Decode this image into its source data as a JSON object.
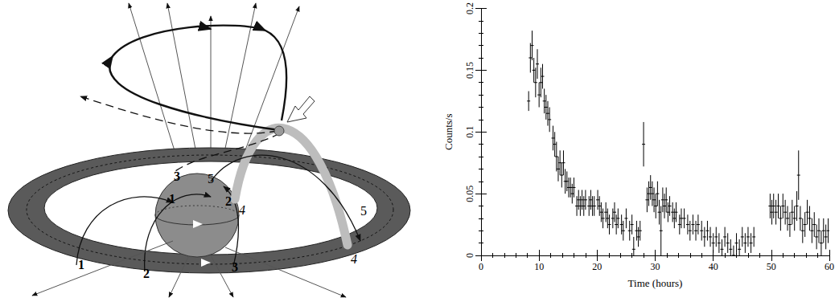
{
  "diagram": {
    "labels": [
      "1",
      "2",
      "3",
      "5",
      "4",
      "1",
      "2",
      "3",
      "5",
      "4"
    ]
  },
  "chart_data": {
    "type": "scatter",
    "x_label": "Time (hours)",
    "y_label": "Counts/s",
    "color": "#000000",
    "xlim": [
      0,
      60
    ],
    "xticks": [
      0,
      10,
      20,
      30,
      40,
      50,
      60
    ],
    "ylim": [
      0,
      0.2
    ],
    "yticks": [
      0,
      0.05,
      0.1,
      0.15,
      0.2
    ],
    "grid": false,
    "x": [
      8.2,
      8.5,
      8.8,
      9.1,
      9.4,
      9.7,
      10.0,
      10.3,
      10.6,
      10.9,
      11.2,
      11.5,
      11.8,
      12.4,
      12.7,
      13.0,
      13.3,
      13.6,
      13.9,
      14.2,
      14.5,
      14.8,
      15.1,
      15.4,
      15.7,
      16.0,
      16.5,
      16.8,
      17.1,
      17.4,
      17.7,
      18.0,
      18.6,
      18.9,
      19.2,
      19.5,
      20.1,
      20.4,
      20.7,
      21.0,
      21.5,
      21.8,
      22.1,
      22.7,
      23.0,
      23.3,
      23.6,
      24.2,
      24.5,
      25.0,
      25.6,
      26.0,
      26.3,
      26.8,
      27.1,
      27.4,
      28.0,
      28.6,
      28.9,
      29.2,
      29.5,
      29.8,
      30.1,
      30.4,
      30.7,
      31.0,
      31.3,
      31.6,
      31.9,
      32.2,
      32.5,
      33.0,
      33.3,
      33.6,
      34.2,
      34.5,
      35.0,
      35.6,
      36.0,
      36.5,
      37.0,
      37.4,
      38.0,
      38.5,
      39.0,
      39.5,
      40.0,
      40.5,
      41.0,
      41.5,
      42.0,
      42.5,
      43.0,
      43.5,
      44.0,
      44.5,
      45.0,
      45.5,
      46.0,
      46.5,
      47.0,
      49.8,
      50.1,
      50.4,
      50.8,
      51.2,
      51.6,
      52.0,
      52.4,
      52.8,
      53.2,
      53.6,
      54.0,
      54.4,
      54.7,
      55.0,
      55.4,
      55.8,
      56.2,
      56.6,
      57.0,
      57.4,
      57.8,
      58.2,
      58.6,
      59.0,
      59.4,
      59.8
    ],
    "values": [
      0.125,
      0.16,
      0.17,
      0.15,
      0.14,
      0.155,
      0.13,
      0.14,
      0.145,
      0.125,
      0.12,
      0.115,
      0.11,
      0.095,
      0.09,
      0.08,
      0.07,
      0.075,
      0.065,
      0.075,
      0.06,
      0.06,
      0.055,
      0.055,
      0.05,
      0.055,
      0.04,
      0.045,
      0.04,
      0.045,
      0.04,
      0.045,
      0.04,
      0.045,
      0.04,
      0.04,
      0.045,
      0.04,
      0.035,
      0.03,
      0.035,
      0.03,
      0.025,
      0.03,
      0.035,
      0.025,
      0.03,
      0.025,
      0.02,
      0.03,
      0.02,
      0.025,
      0.005,
      0.02,
      0.015,
      0.02,
      0.09,
      0.045,
      0.05,
      0.055,
      0.05,
      0.045,
      0.04,
      0.05,
      0.035,
      0.02,
      0.045,
      0.04,
      0.045,
      0.035,
      0.04,
      0.035,
      0.03,
      0.035,
      0.025,
      0.03,
      0.03,
      0.025,
      0.02,
      0.025,
      0.02,
      0.025,
      0.02,
      0.015,
      0.02,
      0.015,
      0.01,
      0.015,
      0.01,
      0.005,
      0.015,
      0.01,
      0.005,
      0,
      0.01,
      0.005,
      0.015,
      0.01,
      0.015,
      0.01,
      0.015,
      0.04,
      0.035,
      0.04,
      0.035,
      0.04,
      0.03,
      0.04,
      0.035,
      0.03,
      0.025,
      0.035,
      0.03,
      0.04,
      0.065,
      0.03,
      0.02,
      0.025,
      0.035,
      0.03,
      0.02,
      0.025,
      0.015,
      0.02,
      0.01,
      0.02,
      0.015,
      0.02
    ],
    "errors": [
      0.008,
      0.012,
      0.012,
      0.01,
      0.012,
      0.012,
      0.01,
      0.012,
      0.01,
      0.01,
      0.01,
      0.01,
      0.01,
      0.01,
      0.01,
      0.012,
      0.01,
      0.01,
      0.01,
      0.01,
      0.01,
      0.008,
      0.008,
      0.008,
      0.008,
      0.008,
      0.008,
      0.008,
      0.008,
      0.008,
      0.008,
      0.008,
      0.008,
      0.008,
      0.008,
      0.008,
      0.008,
      0.008,
      0.008,
      0.008,
      0.008,
      0.008,
      0.008,
      0.008,
      0.008,
      0.008,
      0.008,
      0.008,
      0.008,
      0.008,
      0.008,
      0.008,
      0.01,
      0.008,
      0.008,
      0.008,
      0.018,
      0.01,
      0.01,
      0.01,
      0.01,
      0.01,
      0.01,
      0.01,
      0.01,
      0.02,
      0.01,
      0.01,
      0.01,
      0.008,
      0.008,
      0.008,
      0.008,
      0.008,
      0.008,
      0.008,
      0.008,
      0.008,
      0.008,
      0.008,
      0.008,
      0.008,
      0.008,
      0.008,
      0.008,
      0.008,
      0.008,
      0.008,
      0.008,
      0.008,
      0.008,
      0.008,
      0.008,
      0.008,
      0.008,
      0.008,
      0.008,
      0.008,
      0.008,
      0.008,
      0.008,
      0.01,
      0.01,
      0.01,
      0.01,
      0.01,
      0.01,
      0.01,
      0.01,
      0.01,
      0.01,
      0.01,
      0.01,
      0.012,
      0.02,
      0.01,
      0.01,
      0.01,
      0.01,
      0.01,
      0.01,
      0.01,
      0.01,
      0.01,
      0.01,
      0.01,
      0.01,
      0.01
    ]
  }
}
